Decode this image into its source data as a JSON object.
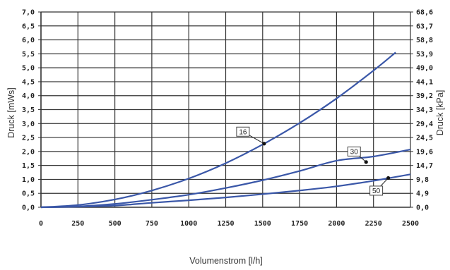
{
  "chart_data": {
    "type": "line",
    "xlabel": "Volumenstrom [l/h]",
    "ylabel_left": "Druck [mWs]",
    "ylabel_right": "Druck [kPa]",
    "xlim": [
      0,
      2500
    ],
    "ylim": [
      0,
      7
    ],
    "grid": true,
    "x_ticks": [
      "0",
      "250",
      "500",
      "750",
      "1000",
      "1250",
      "1500",
      "1750",
      "2000",
      "2250",
      "2500"
    ],
    "y_ticks_left": [
      "0,0",
      "0,5",
      "1,0",
      "1,5",
      "2,0",
      "2,5",
      "3,0",
      "3,5",
      "4,0",
      "4,5",
      "5,0",
      "5,5",
      "6,0",
      "6,5",
      "7,0"
    ],
    "y_ticks_right": [
      "0,0",
      "4,9",
      "9,8",
      "14,7",
      "19,6",
      "24,5",
      "29,4",
      "34,3",
      "39,2",
      "44,1",
      "49,0",
      "53,9",
      "58,8",
      "63,7",
      "68,6"
    ],
    "curve_color": "#3a57a8",
    "series": [
      {
        "name": "16",
        "x": [
          0,
          250,
          500,
          750,
          1000,
          1250,
          1500,
          1750,
          2000,
          2250,
          2400
        ],
        "y": [
          0.0,
          0.08,
          0.28,
          0.6,
          1.03,
          1.58,
          2.25,
          3.02,
          3.9,
          4.9,
          5.55
        ],
        "label_point": [
          1510,
          2.28
        ]
      },
      {
        "name": "30",
        "x": [
          0,
          250,
          500,
          750,
          1000,
          1250,
          1500,
          1750,
          2000,
          2250,
          2500
        ],
        "y": [
          0.0,
          0.03,
          0.12,
          0.27,
          0.45,
          0.69,
          0.97,
          1.3,
          1.67,
          1.82,
          2.07
        ],
        "label_point": [
          2200,
          1.62
        ]
      },
      {
        "name": "50",
        "x": [
          0,
          250,
          500,
          750,
          1000,
          1250,
          1500,
          1750,
          2000,
          2250,
          2500
        ],
        "y": [
          0.0,
          0.02,
          0.06,
          0.16,
          0.25,
          0.35,
          0.47,
          0.6,
          0.75,
          0.95,
          1.18
        ],
        "label_point": [
          2350,
          1.05
        ]
      }
    ]
  }
}
